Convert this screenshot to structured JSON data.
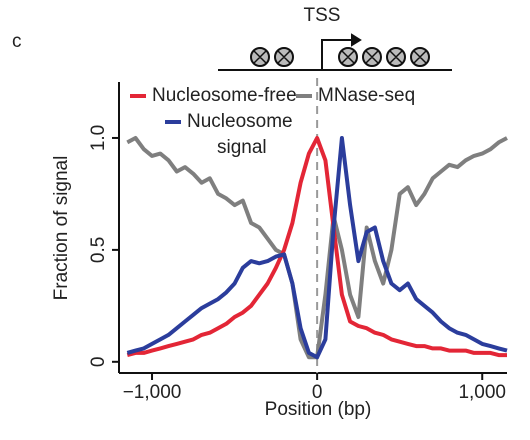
{
  "chart_data": {
    "type": "line",
    "panel_label": "c",
    "annotation": "TSS",
    "xlabel": "Position (bp)",
    "ylabel": "Fraction of signal",
    "x": [
      -1150,
      -1100,
      -1050,
      -1000,
      -950,
      -900,
      -850,
      -800,
      -750,
      -700,
      -650,
      -600,
      -550,
      -500,
      -450,
      -400,
      -350,
      -300,
      -250,
      -200,
      -150,
      -100,
      -50,
      0,
      50,
      100,
      150,
      200,
      250,
      300,
      350,
      400,
      450,
      500,
      550,
      600,
      650,
      700,
      750,
      800,
      850,
      900,
      950,
      1000,
      1050,
      1100,
      1150
    ],
    "series": [
      {
        "name": "Nucleosome-free",
        "color": "#e32636",
        "values": [
          0.03,
          0.04,
          0.04,
          0.05,
          0.06,
          0.07,
          0.08,
          0.09,
          0.1,
          0.12,
          0.13,
          0.15,
          0.17,
          0.2,
          0.22,
          0.25,
          0.3,
          0.35,
          0.42,
          0.5,
          0.62,
          0.8,
          0.93,
          1.0,
          0.9,
          0.6,
          0.3,
          0.18,
          0.16,
          0.15,
          0.13,
          0.12,
          0.1,
          0.09,
          0.08,
          0.07,
          0.07,
          0.06,
          0.06,
          0.05,
          0.05,
          0.05,
          0.04,
          0.04,
          0.04,
          0.03,
          0.03
        ]
      },
      {
        "name": "Nucleosome signal",
        "color": "#2b3d9c",
        "values": [
          0.04,
          0.05,
          0.06,
          0.08,
          0.1,
          0.12,
          0.15,
          0.18,
          0.21,
          0.24,
          0.26,
          0.28,
          0.31,
          0.35,
          0.42,
          0.45,
          0.44,
          0.45,
          0.47,
          0.48,
          0.35,
          0.15,
          0.04,
          0.02,
          0.1,
          0.6,
          1.0,
          0.7,
          0.45,
          0.58,
          0.6,
          0.45,
          0.35,
          0.32,
          0.35,
          0.28,
          0.25,
          0.22,
          0.18,
          0.15,
          0.13,
          0.12,
          0.1,
          0.08,
          0.07,
          0.06,
          0.05
        ]
      },
      {
        "name": "MNase-seq",
        "color": "#7f7f7f",
        "values": [
          0.98,
          1.0,
          0.95,
          0.92,
          0.93,
          0.9,
          0.85,
          0.87,
          0.84,
          0.8,
          0.82,
          0.75,
          0.73,
          0.7,
          0.72,
          0.62,
          0.6,
          0.55,
          0.5,
          0.48,
          0.35,
          0.1,
          0.02,
          0.02,
          0.3,
          0.65,
          0.5,
          0.3,
          0.2,
          0.6,
          0.45,
          0.35,
          0.5,
          0.75,
          0.78,
          0.7,
          0.75,
          0.82,
          0.85,
          0.88,
          0.87,
          0.9,
          0.92,
          0.93,
          0.95,
          0.98,
          1.0
        ]
      }
    ],
    "xlim": [
      -1200,
      1150
    ],
    "xticks": [
      {
        "value": -1000,
        "label": "−1,000"
      },
      0,
      {
        "value": 1000,
        "label": "1,000"
      }
    ],
    "ylim": [
      -0.05,
      1.25
    ],
    "yticks": [
      0,
      0.5,
      {
        "value": 1,
        "label": "1.0"
      }
    ],
    "grid": false
  }
}
